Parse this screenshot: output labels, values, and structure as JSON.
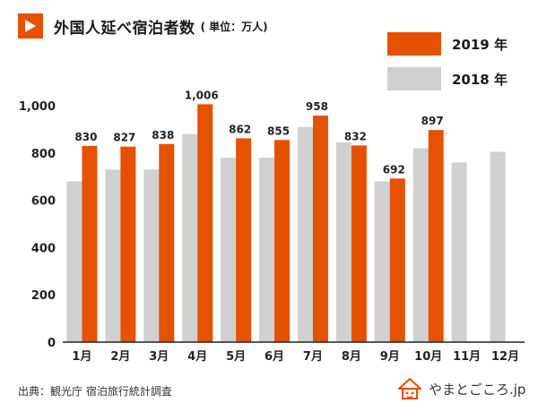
{
  "header": {
    "title": "外国人延べ宿泊者数",
    "unit": "( 単位：万人)"
  },
  "colors": {
    "accent": "#e65100",
    "series_2019": "#e65100",
    "series_2018": "#d0d0d0",
    "axis": "#222222"
  },
  "footer": {
    "source": "出典：観光庁 宿泊旅行統計調査",
    "brand": "やまとごころ.jp"
  },
  "chart_data": {
    "type": "bar",
    "title": "外国人延べ宿泊者数",
    "ylim": [
      0,
      1000
    ],
    "yticks": [
      "0",
      "200",
      "400",
      "600",
      "800",
      "1,000"
    ],
    "categories": [
      "1月",
      "2月",
      "3月",
      "4月",
      "5月",
      "6月",
      "7月",
      "8月",
      "9月",
      "10月",
      "11月",
      "12月"
    ],
    "legend_position": "top-right",
    "grid": false,
    "series": [
      {
        "name": "2018 年",
        "color": "#d0d0d0",
        "values": [
          680,
          730,
          730,
          880,
          780,
          780,
          910,
          845,
          680,
          820,
          760,
          805
        ],
        "labels": []
      },
      {
        "name": "2019 年",
        "color": "#e65100",
        "values": [
          830,
          827,
          838,
          1006,
          862,
          855,
          958,
          832,
          692,
          897,
          null,
          null
        ],
        "labels": [
          "830",
          "827",
          "838",
          "1,006",
          "862",
          "855",
          "958",
          "832",
          "692",
          "897",
          "",
          ""
        ]
      }
    ]
  }
}
